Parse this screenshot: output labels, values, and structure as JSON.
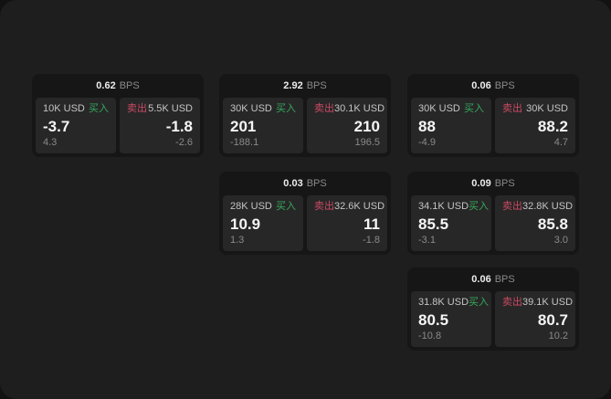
{
  "page": {
    "bg_outer": "#121212",
    "bg_surface": "#1e1e1e",
    "card_bg": "#161616",
    "panel_bg": "#272727",
    "accent_green": "#35a85c",
    "accent_red": "#cb4a63"
  },
  "labels": {
    "bps": "BPS",
    "buy": "买入",
    "sell": "卖出"
  },
  "cards": [
    {
      "bps": "0.62",
      "buy": {
        "amount": "10K USD",
        "price": "-3.7",
        "delta": "4.3"
      },
      "sell": {
        "amount": "5.5K USD",
        "price": "-1.8",
        "delta": "-2.6"
      }
    },
    {
      "bps": "2.92",
      "buy": {
        "amount": "30K USD",
        "price": "201",
        "delta": "-188.1"
      },
      "sell": {
        "amount": "30.1K USD",
        "price": "210",
        "delta": "196.5"
      }
    },
    {
      "bps": "0.06",
      "buy": {
        "amount": "30K USD",
        "price": "88",
        "delta": "-4.9"
      },
      "sell": {
        "amount": "30K USD",
        "price": "88.2",
        "delta": "4.7"
      }
    },
    {
      "bps": "0.03",
      "buy": {
        "amount": "28K USD",
        "price": "10.9",
        "delta": "1.3"
      },
      "sell": {
        "amount": "32.6K USD",
        "price": "11",
        "delta": "-1.8"
      }
    },
    {
      "bps": "0.09",
      "buy": {
        "amount": "34.1K USD",
        "price": "85.5",
        "delta": "-3.1"
      },
      "sell": {
        "amount": "32.8K USD",
        "price": "85.8",
        "delta": "3.0"
      }
    },
    {
      "bps": "0.06",
      "buy": {
        "amount": "31.8K USD",
        "price": "80.5",
        "delta": "-10.8"
      },
      "sell": {
        "amount": "39.1K USD",
        "price": "80.7",
        "delta": "10.2"
      }
    }
  ]
}
